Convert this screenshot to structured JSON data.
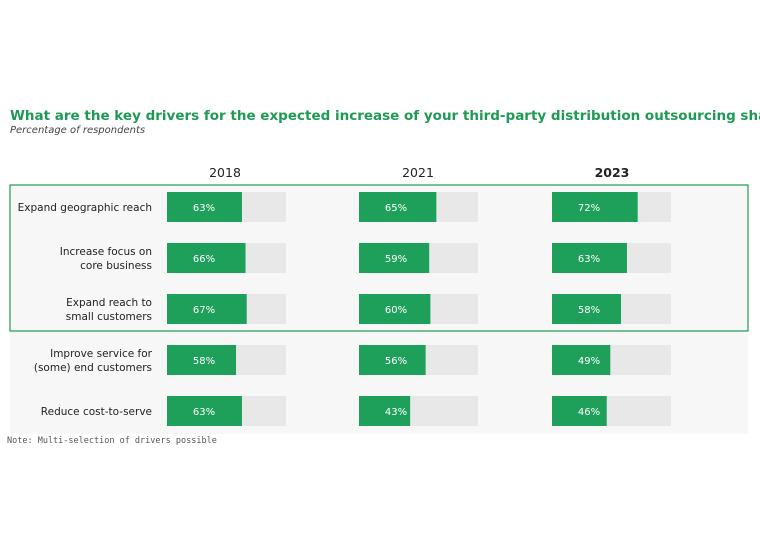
{
  "colors": {
    "bar": "#1fa05a",
    "track": "#e8e8e8",
    "title": "#1f9a55",
    "highlight_border": "#1f9a55",
    "row_band": "#f7f7f7"
  },
  "chart_data": {
    "type": "bar",
    "title": "What are the key drivers for the expected increase of your third-party distribution outsourcing share?",
    "subtitle": "Percentage of respondents",
    "categories": [
      "Expand geographic reach",
      "Increase focus on\ncore business",
      "Expand reach to\nsmall customers",
      "Improve service for\n(some) end customers",
      "Reduce cost-to-serve"
    ],
    "series": [
      {
        "name": "2018",
        "values": [
          63,
          66,
          67,
          58,
          63
        ],
        "labels": [
          "63%",
          "66%",
          "67%",
          "58%",
          "63%"
        ]
      },
      {
        "name": "2021",
        "values": [
          65,
          59,
          60,
          56,
          43
        ],
        "labels": [
          "65%",
          "59%",
          "60%",
          "56%",
          "43%"
        ]
      },
      {
        "name": "2023",
        "values": [
          72,
          63,
          58,
          49,
          46
        ],
        "labels": [
          "72%",
          "63%",
          "58%",
          "49%",
          "46%"
        ]
      }
    ],
    "ylim": [
      0,
      100
    ],
    "highlighted_rows": [
      0,
      1,
      2
    ],
    "note": "Note: Multi-selection of drivers possible"
  }
}
